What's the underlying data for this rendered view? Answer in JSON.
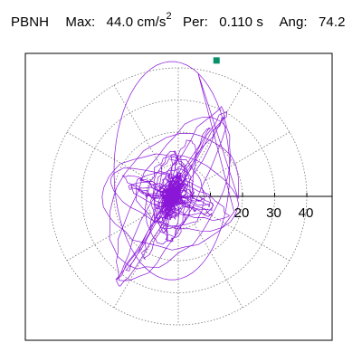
{
  "header": {
    "station": "PBNH",
    "max_label": "Max:",
    "max_value": "44.0 cm/s",
    "max_exp": "2",
    "per_label": "Per:",
    "per_value": "0.110 s",
    "ang_label": "Ang:",
    "ang_value": "74.2"
  },
  "chart_data": {
    "type": "scatter",
    "title": "",
    "xlabel": "",
    "ylabel": "",
    "xlim": [
      -46,
      46
    ],
    "ylim": [
      -46,
      46
    ],
    "rings": [
      10,
      20,
      30,
      40
    ],
    "radial_every_deg": 30,
    "grid": true,
    "tick_labels": [
      "20",
      "30",
      "40"
    ],
    "tick_values": [
      20,
      30,
      40
    ],
    "peak_marker": {
      "x": 11.9,
      "y": 42.3
    },
    "colors": {
      "trace": "#8a16d8",
      "grid": "#777777",
      "marker": "#0a8f6b",
      "frame": "#000000"
    }
  }
}
